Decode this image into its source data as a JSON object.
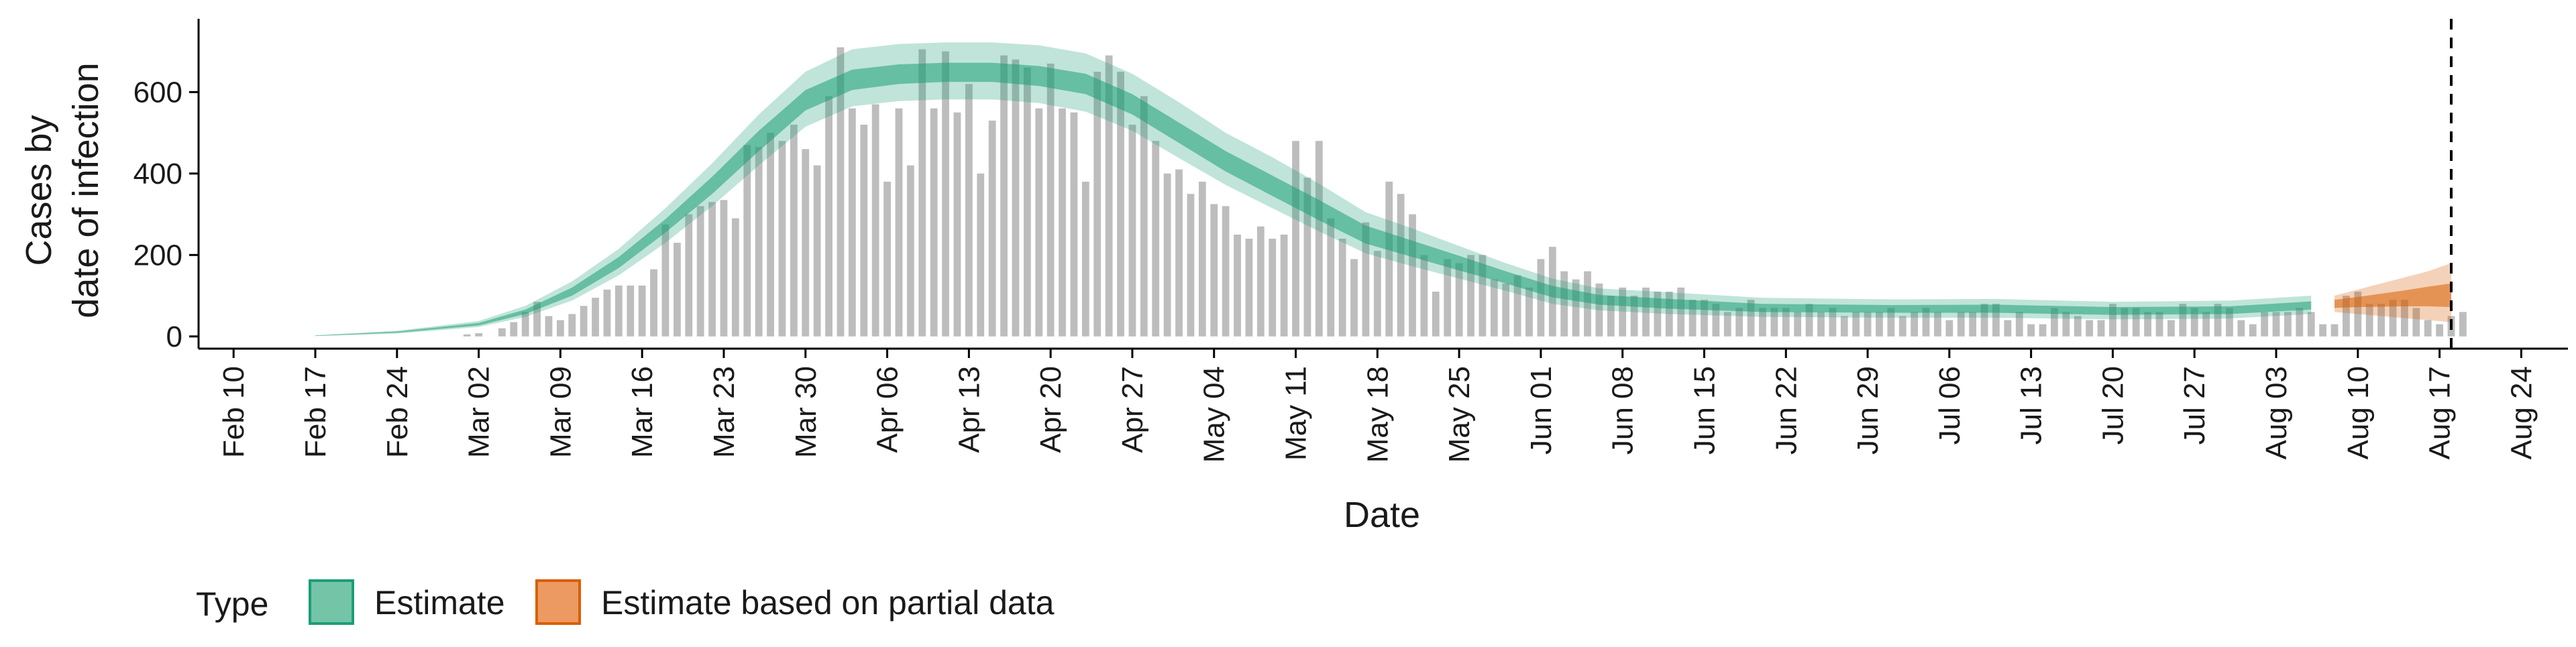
{
  "chart_data": {
    "type": "bar",
    "title": "",
    "xlabel": "Date",
    "ylabel_line1": "Cases by",
    "ylabel_line2": "date of infection",
    "x_tick_labels": [
      "Feb 10",
      "Feb 17",
      "Feb 24",
      "Mar 02",
      "Mar 09",
      "Mar 16",
      "Mar 23",
      "Mar 30",
      "Apr 06",
      "Apr 13",
      "Apr 20",
      "Apr 27",
      "May 04",
      "May 11",
      "May 18",
      "May 25",
      "Jun 01",
      "Jun 08",
      "Jun 15",
      "Jun 22",
      "Jun 29",
      "Jul 06",
      "Jul 13",
      "Jul 20",
      "Jul 27",
      "Aug 03",
      "Aug 10",
      "Aug 17",
      "Aug 24"
    ],
    "x_tick_dates": [
      "2020-02-10",
      "2020-02-17",
      "2020-02-24",
      "2020-03-02",
      "2020-03-09",
      "2020-03-16",
      "2020-03-23",
      "2020-03-30",
      "2020-04-06",
      "2020-04-13",
      "2020-04-20",
      "2020-04-27",
      "2020-05-04",
      "2020-05-11",
      "2020-05-18",
      "2020-05-25",
      "2020-06-01",
      "2020-06-08",
      "2020-06-15",
      "2020-06-22",
      "2020-06-29",
      "2020-07-06",
      "2020-07-13",
      "2020-07-20",
      "2020-07-27",
      "2020-08-03",
      "2020-08-10",
      "2020-08-17",
      "2020-08-24"
    ],
    "xlim": [
      "2020-02-07",
      "2020-08-28"
    ],
    "ylim": [
      -30,
      780
    ],
    "y_ticks": [
      0,
      200,
      400,
      600
    ],
    "y_tick_labels": [
      "0",
      "200",
      "400",
      "600"
    ],
    "grid": false,
    "reference_line": {
      "date": "2020-08-18",
      "style": "dashed"
    },
    "legend": {
      "position": "bottom-left",
      "title": "Type",
      "entries": [
        {
          "label": "Estimate",
          "color": "#1b9e77"
        },
        {
          "label": "Estimate based on partial data",
          "color": "#d95f02"
        }
      ]
    },
    "colors": {
      "bars": "#bdbdbd",
      "estimate": "#1b9e77",
      "partial": "#d95f02"
    },
    "bars": {
      "start_date": "2020-02-25",
      "values": [
        0,
        0,
        0,
        0,
        0,
        5,
        8,
        0,
        20,
        35,
        60,
        85,
        50,
        40,
        55,
        75,
        95,
        115,
        125,
        125,
        125,
        165,
        275,
        230,
        300,
        320,
        330,
        335,
        290,
        470,
        465,
        500,
        480,
        520,
        460,
        420,
        590,
        710,
        560,
        520,
        570,
        380,
        560,
        420,
        705,
        560,
        700,
        550,
        620,
        400,
        530,
        690,
        680,
        660,
        560,
        670,
        560,
        550,
        380,
        650,
        690,
        650,
        520,
        590,
        480,
        400,
        410,
        350,
        380,
        325,
        320,
        250,
        240,
        270,
        240,
        250,
        480,
        390,
        480,
        290,
        240,
        190,
        280,
        210,
        380,
        350,
        300,
        200,
        110,
        190,
        180,
        200,
        200,
        140,
        130,
        150,
        120,
        190,
        220,
        160,
        140,
        160,
        130,
        100,
        120,
        100,
        120,
        110,
        110,
        120,
        90,
        90,
        80,
        60,
        70,
        90,
        70,
        70,
        70,
        60,
        80,
        60,
        70,
        50,
        60,
        60,
        60,
        70,
        50,
        60,
        70,
        60,
        40,
        60,
        60,
        80,
        80,
        40,
        60,
        30,
        30,
        70,
        60,
        50,
        40,
        40,
        80,
        70,
        70,
        60,
        60,
        40,
        80,
        70,
        60,
        80,
        70,
        40,
        30,
        60,
        60,
        60,
        70,
        60,
        30,
        30,
        100,
        110,
        80,
        80,
        90,
        90,
        70,
        40,
        30,
        50,
        60
      ]
    },
    "estimate_series": {
      "name": "Estimate",
      "x": [
        "2020-02-17",
        "2020-02-24",
        "2020-03-02",
        "2020-03-06",
        "2020-03-10",
        "2020-03-14",
        "2020-03-18",
        "2020-03-22",
        "2020-03-26",
        "2020-03-30",
        "2020-04-03",
        "2020-04-07",
        "2020-04-11",
        "2020-04-15",
        "2020-04-19",
        "2020-04-23",
        "2020-04-27",
        "2020-05-01",
        "2020-05-05",
        "2020-05-09",
        "2020-05-13",
        "2020-05-17",
        "2020-05-21",
        "2020-05-25",
        "2020-05-29",
        "2020-06-02",
        "2020-06-06",
        "2020-06-12",
        "2020-06-20",
        "2020-07-01",
        "2020-07-10",
        "2020-07-20",
        "2020-07-30",
        "2020-08-06"
      ],
      "median": [
        1,
        10,
        30,
        60,
        110,
        180,
        270,
        370,
        480,
        580,
        630,
        645,
        650,
        648,
        640,
        620,
        570,
        500,
        430,
        370,
        310,
        250,
        215,
        180,
        145,
        110,
        90,
        80,
        70,
        67,
        68,
        62,
        64,
        76
      ],
      "lower50": [
        1,
        9,
        27,
        55,
        100,
        168,
        255,
        350,
        455,
        555,
        605,
        620,
        625,
        625,
        615,
        595,
        545,
        475,
        405,
        345,
        285,
        228,
        195,
        162,
        130,
        96,
        78,
        68,
        60,
        58,
        58,
        53,
        55,
        66
      ],
      "upper50": [
        2,
        12,
        33,
        66,
        120,
        195,
        288,
        392,
        505,
        605,
        655,
        668,
        672,
        672,
        664,
        645,
        595,
        525,
        455,
        395,
        335,
        272,
        235,
        198,
        160,
        124,
        102,
        92,
        80,
        77,
        78,
        72,
        74,
        86
      ],
      "lower90": [
        1,
        7,
        23,
        48,
        88,
        150,
        230,
        320,
        420,
        515,
        565,
        578,
        582,
        582,
        573,
        552,
        505,
        438,
        372,
        315,
        258,
        204,
        172,
        142,
        112,
        80,
        64,
        55,
        48,
        46,
        46,
        42,
        44,
        55
      ],
      "upper90": [
        3,
        14,
        38,
        75,
        135,
        215,
        315,
        425,
        545,
        650,
        705,
        718,
        722,
        722,
        715,
        695,
        645,
        575,
        500,
        440,
        375,
        305,
        265,
        222,
        180,
        142,
        118,
        108,
        95,
        91,
        92,
        85,
        88,
        100
      ]
    },
    "partial_series": {
      "name": "Estimate based on partial data",
      "x": [
        "2020-08-08",
        "2020-08-10",
        "2020-08-12",
        "2020-08-14",
        "2020-08-16",
        "2020-08-18"
      ],
      "median": [
        80,
        85,
        90,
        95,
        100,
        100
      ],
      "lower50": [
        70,
        72,
        73,
        74,
        74,
        72
      ],
      "upper50": [
        90,
        97,
        105,
        113,
        122,
        130
      ],
      "lower90": [
        60,
        55,
        50,
        45,
        40,
        35
      ],
      "upper90": [
        100,
        115,
        130,
        145,
        160,
        180
      ]
    }
  }
}
